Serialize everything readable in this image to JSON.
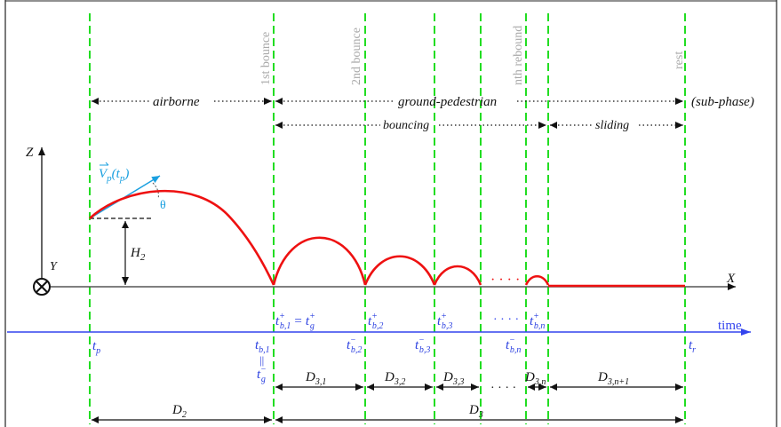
{
  "colors": {
    "guide_lines": "#22dd22",
    "trajectory": "#ee1111",
    "time_axis": "#3344ee",
    "velocity_vector": "#1aa0e0",
    "labels": "#111111",
    "event_labels": "#a9a9a9"
  },
  "events": {
    "first_bounce": "1st bounce",
    "second_bounce": "2nd bounce",
    "nth_rebound": "nth rebound",
    "rest": "rest"
  },
  "phases": {
    "airborne": "airborne",
    "ground_pedestrian": "ground-pedestrian",
    "sub_phase": "(sub-phase)",
    "bouncing": "bouncing",
    "sliding": "sliding"
  },
  "axes": {
    "z": "Z",
    "x": "X",
    "y": "Y",
    "time": "time",
    "h2": "H",
    "h2_sub": "2"
  },
  "vector": {
    "v": "V",
    "v_sub": "p",
    "v_arg": "(t",
    "v_arg_sub": "p",
    "v_arg_close": ")",
    "theta": "θ"
  },
  "time_labels": {
    "tp": "t",
    "tp_sub": "p",
    "tb1": "t",
    "tb1_sub": "b,1",
    "par": "||",
    "tg_minus": "t",
    "tg_minus_sub": "g",
    "tg_minus_sup": "−",
    "tb1p": "t",
    "tb1p_sub": "b,1",
    "tb1p_sup": "+",
    "eq": "=",
    "tgp": "t",
    "tgp_sub": "g",
    "tgp_sup": "+",
    "tb2p": "t",
    "tb2p_sub": "b,2",
    "tb2p_sup": "+",
    "tb2m": "t",
    "tb2m_sub": "b,2",
    "tb2m_sup": "−",
    "tb3p": "t",
    "tb3p_sub": "b,3",
    "tb3p_sup": "+",
    "tb3m": "t",
    "tb3m_sub": "b,3",
    "tb3m_sup": "−",
    "tbnm": "t",
    "tbnm_sub": "b,n",
    "tbnm_sup": "−",
    "tbnp": "t",
    "tbnp_sub": "b,n",
    "tbnp_sup": "+",
    "tr": "t",
    "tr_sub": "r"
  },
  "durations": {
    "d31": "D",
    "d31_sub": "3,1",
    "d32": "D",
    "d32_sub": "3,2",
    "d33": "D",
    "d33_sub": "3,3",
    "d3n": "D",
    "d3n_sub": "3,n",
    "d3n1": "D",
    "d3n1_sub": "3,n+1",
    "d2": "D",
    "d2_sub": "2",
    "d3": "D",
    "d3_sub": "3"
  },
  "ellipses": {
    "trajectory_dots": "· · · ·",
    "time_dots": "· · · ·",
    "duration_dots": "· · · ·"
  }
}
